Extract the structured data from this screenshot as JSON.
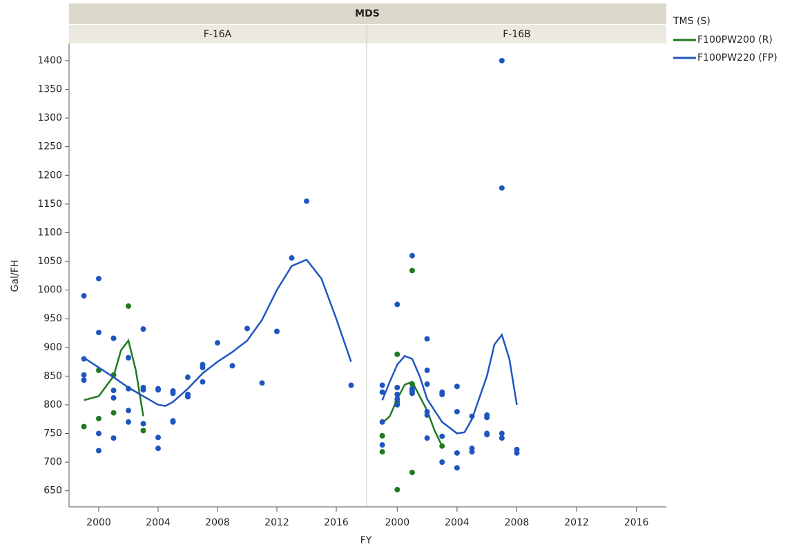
{
  "chart_data": {
    "type": "scatter",
    "title": "MDS",
    "x_label": "FY",
    "y_label": "Gal/FH",
    "legend_title": "TMS (S)",
    "series": [
      {
        "name": "F100PW200 (R)",
        "color": "#1f7a1f"
      },
      {
        "name": "F100PW220 (FP)",
        "color": "#1f55c0"
      }
    ],
    "xlim": [
      1998,
      2018
    ],
    "xticks": [
      2000,
      2004,
      2008,
      2012,
      2016
    ],
    "ylim": [
      622,
      1430
    ],
    "yticks": [
      650,
      700,
      750,
      800,
      850,
      900,
      950,
      1000,
      1050,
      1100,
      1150,
      1200,
      1250,
      1300,
      1350,
      1400
    ],
    "panels": [
      {
        "label": "F-16A",
        "series": [
          {
            "x": [
              1999,
              2000,
              2000,
              2001,
              2001,
              2002,
              2003
            ],
            "values": [
              762,
              860,
              776,
              786,
              852,
              972,
              755
            ],
            "fit_x": [
              1999,
              2000,
              2001,
              2001.5,
              2002,
              2002.5,
              2003
            ],
            "fit_values": [
              808,
              815,
              850,
              895,
              912,
              860,
              780
            ]
          },
          {
            "x": [
              1999,
              1999,
              1999,
              1999,
              2000,
              2000,
              2000,
              2000,
              2001,
              2001,
              2001,
              2001,
              2002,
              2002,
              2002,
              2002,
              2003,
              2003,
              2003,
              2003,
              2004,
              2004,
              2004,
              2004,
              2005,
              2005,
              2005,
              2005,
              2006,
              2006,
              2006,
              2007,
              2007,
              2007,
              2008,
              2009,
              2010,
              2011,
              2012,
              2013,
              2014,
              2017
            ],
            "values": [
              990,
              880,
              852,
              843,
              1020,
              926,
              750,
              720,
              916,
              825,
              812,
              742,
              882,
              828,
              790,
              770,
              932,
              830,
              826,
              767,
              828,
              826,
              743,
              724,
              824,
              820,
              772,
              770,
              848,
              818,
              814,
              870,
              865,
              840,
              908,
              868,
              933,
              838,
              928,
              1056,
              1155,
              834
            ],
            "fit_x": [
              1999,
              2000,
              2001,
              2002,
              2003,
              2004,
              2004.5,
              2005,
              2006,
              2007,
              2008,
              2009,
              2010,
              2011,
              2012,
              2013,
              2014,
              2015,
              2016,
              2017
            ],
            "fit_values": [
              882,
              865,
              848,
              830,
              815,
              800,
              798,
              805,
              828,
              855,
              875,
              892,
              912,
              948,
              1000,
              1042,
              1053,
              1020,
              950,
              875
            ]
          }
        ]
      },
      {
        "label": "F-16B",
        "series": [
          {
            "x": [
              1999,
              1999,
              2000,
              2000,
              2000,
              2001,
              2001,
              2001,
              2003
            ],
            "values": [
              746,
              718,
              888,
              805,
              652,
              1034,
              836,
              682,
              728
            ],
            "fit_x": [
              1999,
              1999.5,
              2000,
              2000.5,
              2001,
              2001.5,
              2002,
              2002.5,
              2003
            ],
            "fit_values": [
              768,
              780,
              810,
              835,
              840,
              815,
              790,
              755,
              728
            ]
          },
          {
            "x": [
              1999,
              1999,
              1999,
              1999,
              2000,
              2000,
              2000,
              2000,
              2000,
              2001,
              2001,
              2001,
              2001,
              2002,
              2002,
              2002,
              2002,
              2002,
              2002,
              2003,
              2003,
              2003,
              2003,
              2004,
              2004,
              2004,
              2004,
              2005,
              2005,
              2005,
              2006,
              2006,
              2006,
              2006,
              2007,
              2007,
              2007,
              2007,
              2008,
              2008
            ],
            "values": [
              834,
              822,
              770,
              730,
              975,
              830,
              818,
              810,
              800,
              1060,
              828,
              824,
              820,
              915,
              860,
              836,
              788,
              782,
              742,
              822,
              818,
              745,
              700,
              832,
              788,
              716,
              690,
              780,
              724,
              718,
              782,
              778,
              750,
              748,
              1400,
              1178,
              750,
              742,
              722,
              716
            ],
            "fit_x": [
              1999,
              1999.5,
              2000,
              2000.5,
              2001,
              2001.5,
              2002,
              2003,
              2004,
              2004.5,
              2005,
              2006,
              2006.5,
              2007,
              2007.5,
              2008
            ],
            "fit_values": [
              808,
              840,
              870,
              885,
              880,
              850,
              810,
              770,
              750,
              752,
              775,
              850,
              905,
              922,
              880,
              800
            ]
          }
        ]
      }
    ]
  }
}
